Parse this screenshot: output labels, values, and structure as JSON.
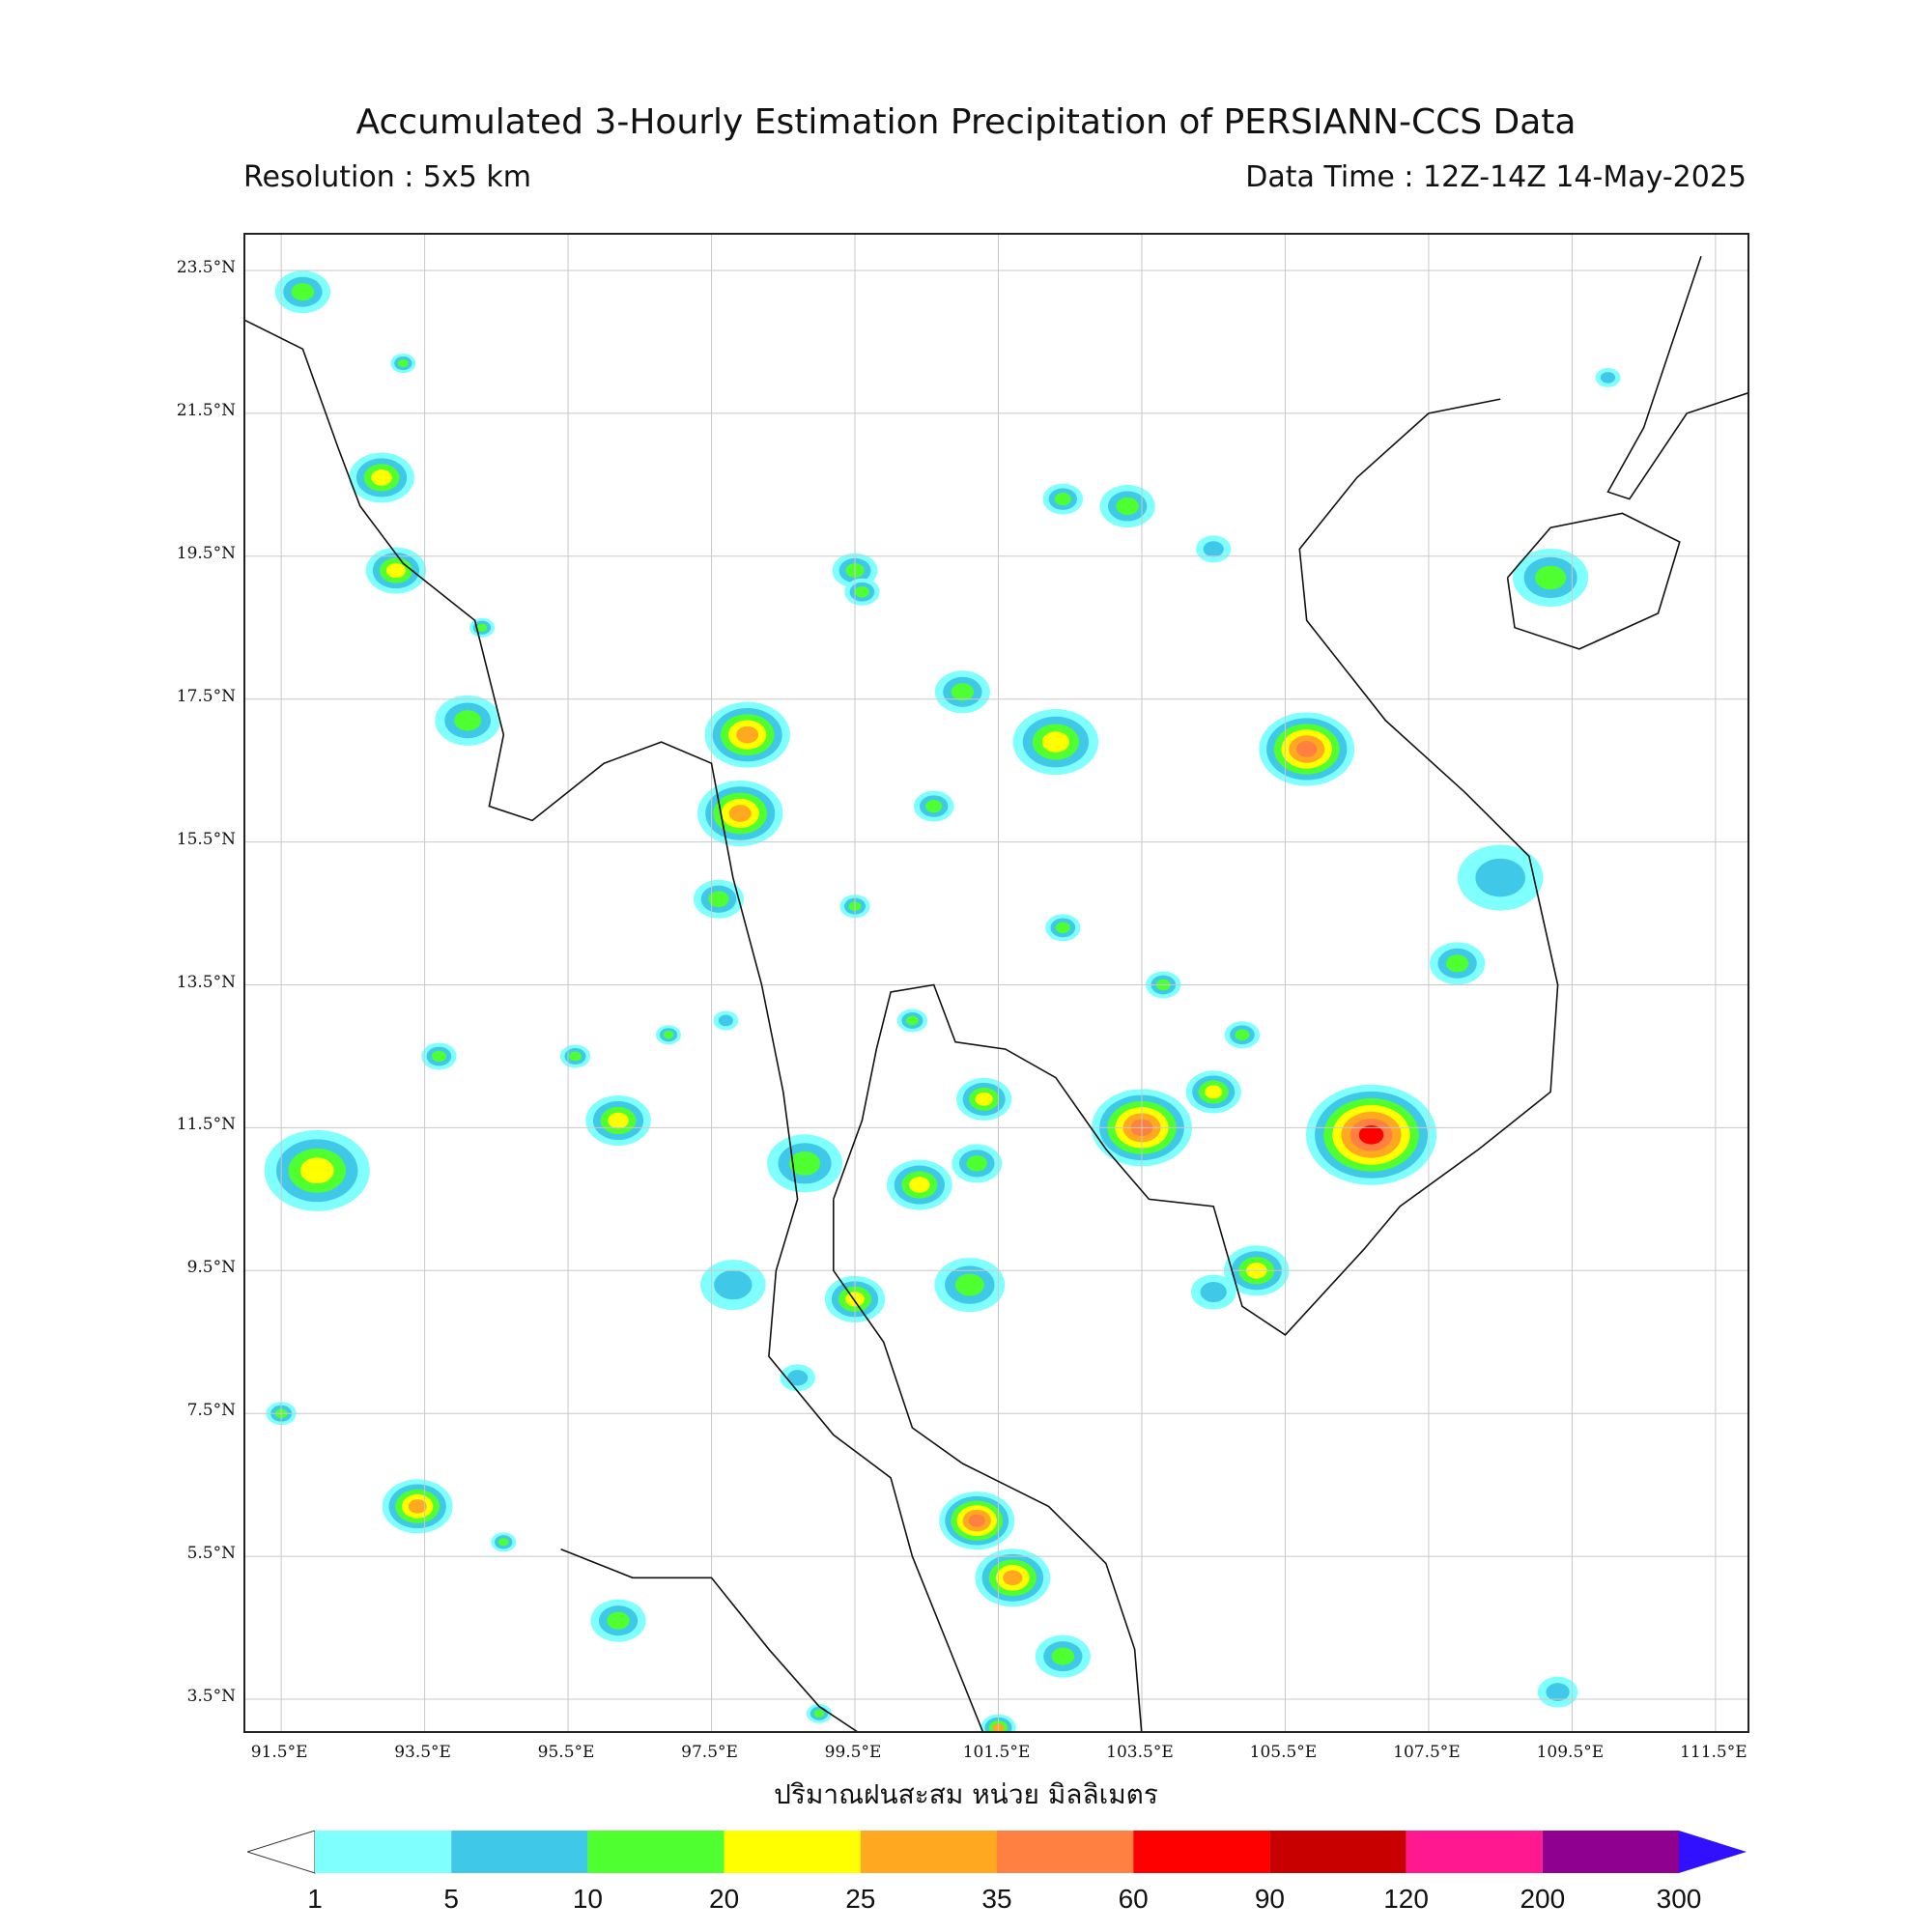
{
  "title": "Accumulated 3-Hourly Estimation Precipitation of PERSIANN-CCS Data",
  "resolution": "Resolution : 5x5 km",
  "data_time": "Data Time : 12Z-14Z 14-May-2025",
  "xlabel": "ปริมาณฝนสะสม หน่วย มิลลิเมตร",
  "map": {
    "lon_range": [
      91.0,
      112.0
    ],
    "lat_range": [
      3.0,
      24.0
    ],
    "lat_ticks": [
      "23.5°N",
      "21.5°N",
      "19.5°N",
      "17.5°N",
      "15.5°N",
      "13.5°N",
      "11.5°N",
      "9.5°N",
      "7.5°N",
      "5.5°N",
      "3.5°N"
    ],
    "lon_ticks": [
      "91.5°E",
      "93.5°E",
      "95.5°E",
      "97.5°E",
      "99.5°E",
      "101.5°E",
      "103.5°E",
      "105.5°E",
      "107.5°E",
      "109.5°E",
      "111.5°E"
    ]
  },
  "colorbar": {
    "labels": [
      "1",
      "5",
      "10",
      "20",
      "25",
      "35",
      "60",
      "90",
      "120",
      "200",
      "300"
    ],
    "colors": [
      "#80ffff",
      "#40c8e8",
      "#50ff30",
      "#ffff00",
      "#ffa820",
      "#ff8040",
      "#ff0000",
      "#c80000",
      "#ff1890",
      "#900090"
    ],
    "under_color": "#ffffff",
    "over_color": "#3010ff"
  }
}
